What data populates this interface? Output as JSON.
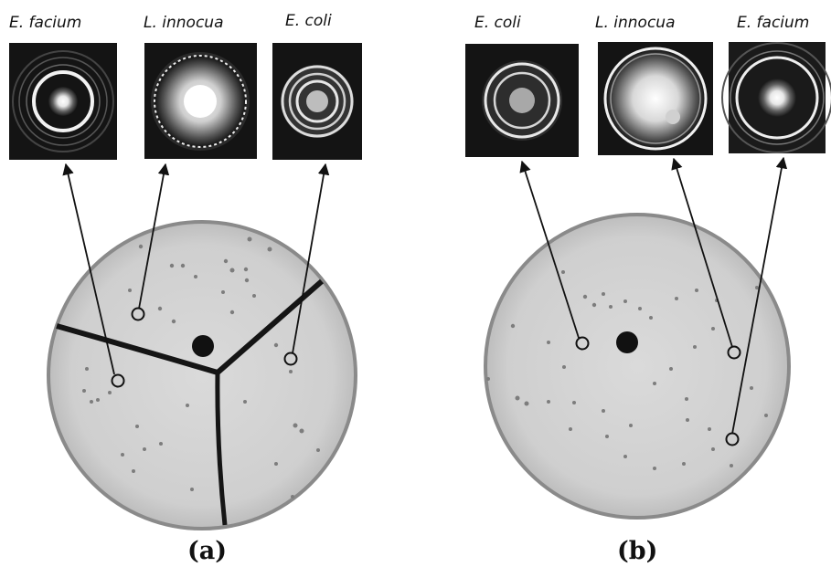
{
  "panel_a": {
    "label": "(a)",
    "species": [
      "E. facium",
      "L. innocua",
      "E. coli"
    ]
  },
  "panel_b": {
    "label": "(b)",
    "species": [
      "E. coli",
      "L. innocua",
      "E. facium"
    ]
  }
}
